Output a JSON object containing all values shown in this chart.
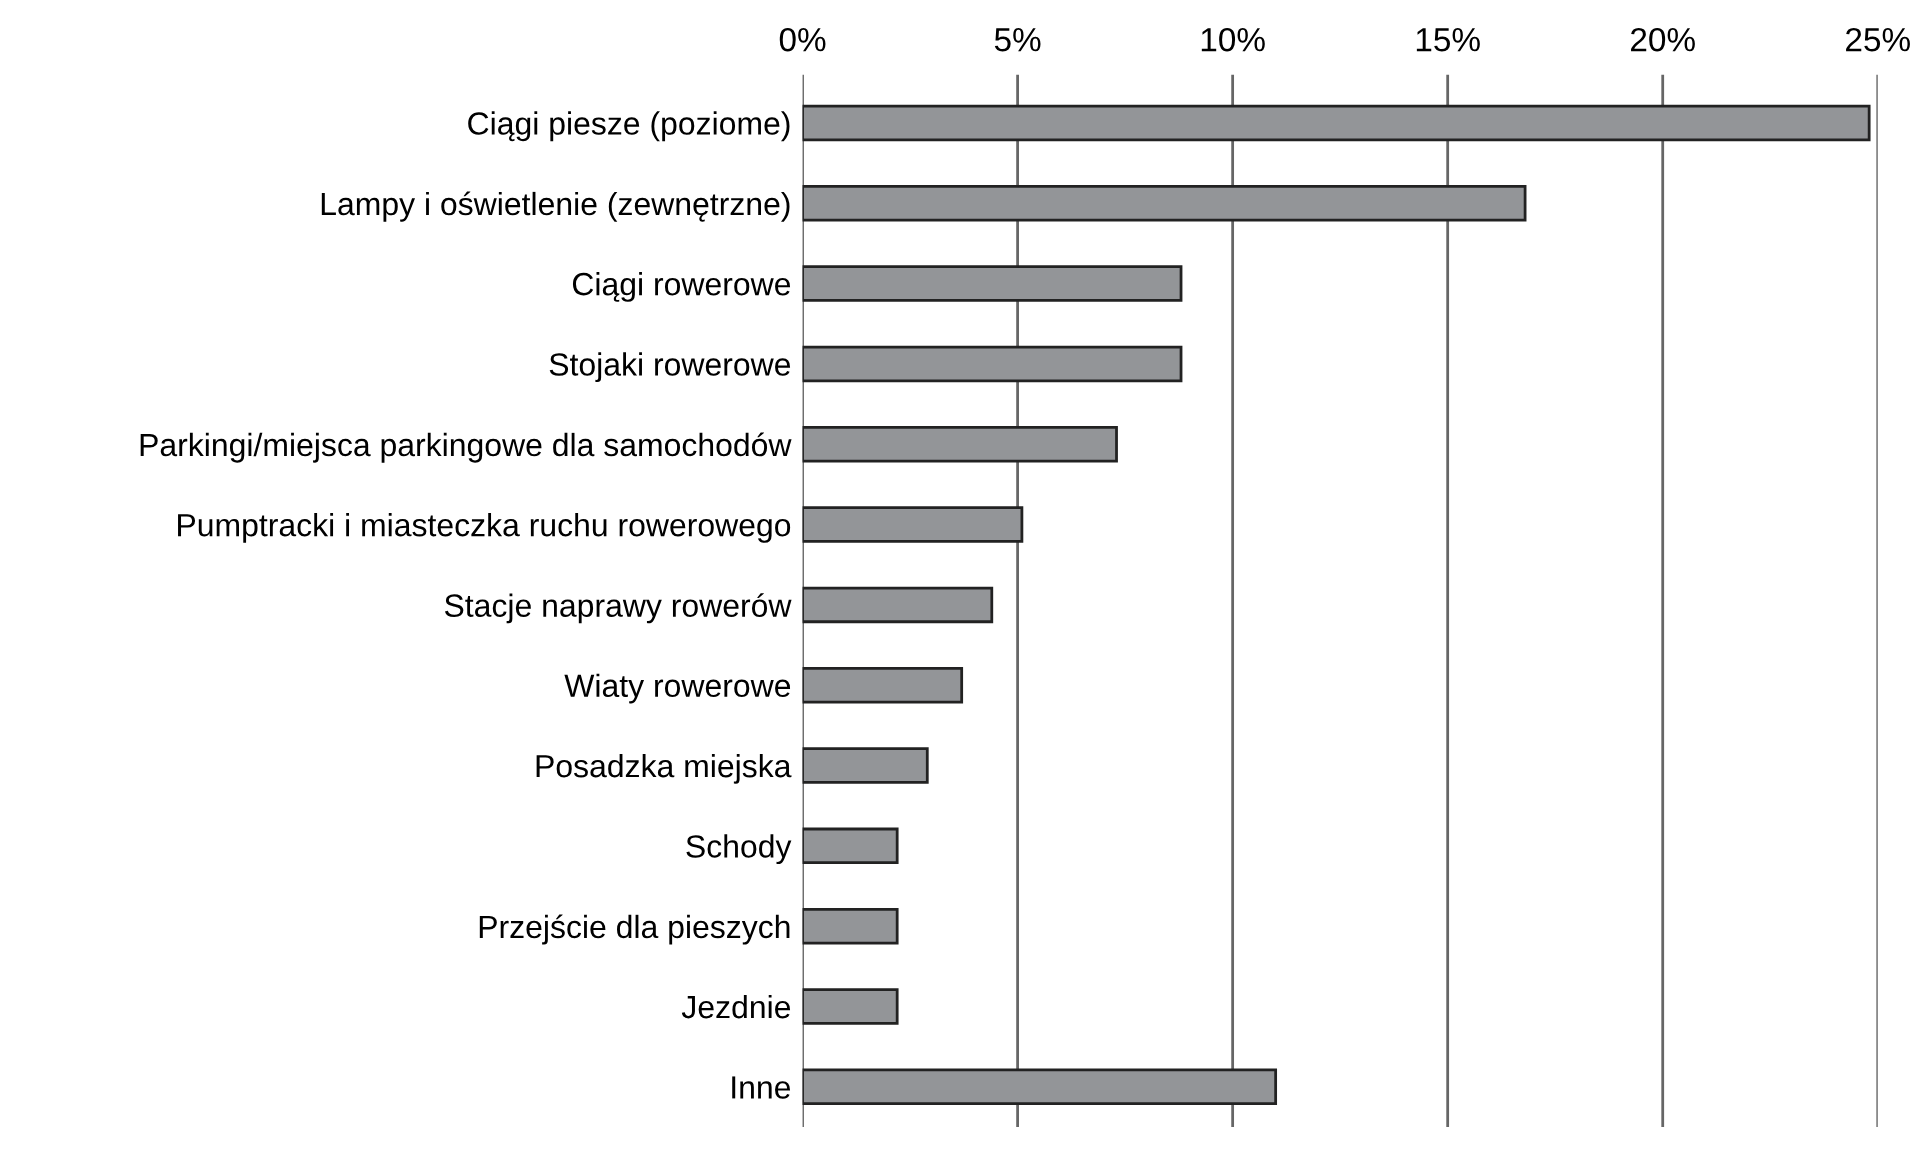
{
  "chart_data": {
    "type": "bar",
    "orientation": "horizontal",
    "categories": [
      "Ciągi piesze (poziome)",
      "Lampy i oświetlenie (zewnętrzne)",
      "Ciągi rowerowe",
      "Stojaki rowerowe",
      "Parkingi/miejsca parkingowe dla samochodów",
      "Pumptracki i miasteczka ruchu rowerowego",
      "Stacje naprawy rowerów",
      "Wiaty rowerowe",
      "Posadzka miejska",
      "Schody",
      "Przejście dla pieszych",
      "Jezdnie",
      "Inne"
    ],
    "values": [
      24.8,
      16.8,
      8.8,
      8.8,
      7.3,
      5.1,
      4.4,
      3.7,
      2.9,
      2.2,
      2.2,
      2.2,
      11.0
    ],
    "color": "#939598",
    "xlim": [
      0,
      25
    ],
    "xticks": [
      {
        "value": 0,
        "label": "0%"
      },
      {
        "value": 5,
        "label": "5%"
      },
      {
        "value": 10,
        "label": "10%"
      },
      {
        "value": 15,
        "label": "15%"
      },
      {
        "value": 20,
        "label": "20%"
      },
      {
        "value": 25,
        "label": "25%"
      }
    ],
    "grid": "x",
    "legend": false
  }
}
